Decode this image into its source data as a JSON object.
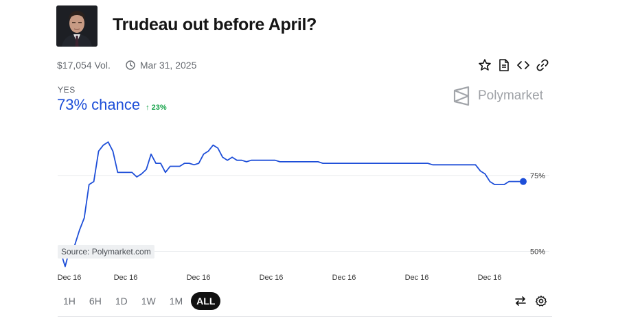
{
  "market": {
    "title": "Trudeau out before April?",
    "volume": "$17,054 Vol.",
    "end_date": "Mar 31, 2025",
    "outcome_label": "YES",
    "chance": "73% chance",
    "change": "↑ 23%",
    "brand": "Polymarket",
    "source_label": "Source: Polymarket.com"
  },
  "actions": {
    "icons": [
      "star-icon",
      "document-icon",
      "embed-code-icon",
      "link-icon"
    ]
  },
  "range_buttons": [
    "1H",
    "6H",
    "1D",
    "1W",
    "1M",
    "ALL"
  ],
  "selected_range": "ALL",
  "colors": {
    "accent_blue": "#1d4ed8",
    "positive_green": "#16a34a",
    "grid": "#e9ebee"
  },
  "chart_data": {
    "type": "line",
    "title": "",
    "xlabel": "",
    "ylabel": "",
    "ylim": [
      44,
      91
    ],
    "yticks": [
      50,
      75
    ],
    "ytick_labels": [
      "50%",
      "75%"
    ],
    "xtick_labels": [
      "Dec 16",
      "Dec 16",
      "Dec 16",
      "Dec 16",
      "Dec 16",
      "Dec 16",
      "Dec 16"
    ],
    "grid": true,
    "series": [
      {
        "values": [
          50,
          45,
          51,
          52,
          57,
          61,
          72,
          73,
          83,
          85,
          86,
          83,
          76,
          76,
          76,
          76,
          74.5,
          75.5,
          77,
          82,
          79,
          79,
          76,
          78,
          78,
          78,
          79,
          79,
          78.5,
          79,
          82,
          83,
          85,
          84,
          81,
          80,
          81,
          80,
          80,
          79.5,
          80,
          80,
          80,
          80,
          80,
          80,
          79.5,
          79.5,
          79.5,
          79.5,
          79.5,
          79.5,
          79.5,
          79.5,
          79.5,
          79,
          79,
          79,
          79,
          79,
          79,
          79,
          79,
          79,
          79,
          79,
          79,
          79,
          79,
          79,
          79,
          79,
          79,
          79,
          79,
          79,
          79,
          79,
          78.5,
          78.5,
          78.5,
          78.5,
          78.5,
          78.5,
          78.5,
          78.5,
          78.5,
          78.5,
          76.5,
          75.5,
          73,
          72,
          72,
          72,
          73,
          73,
          73,
          73
        ]
      }
    ]
  }
}
